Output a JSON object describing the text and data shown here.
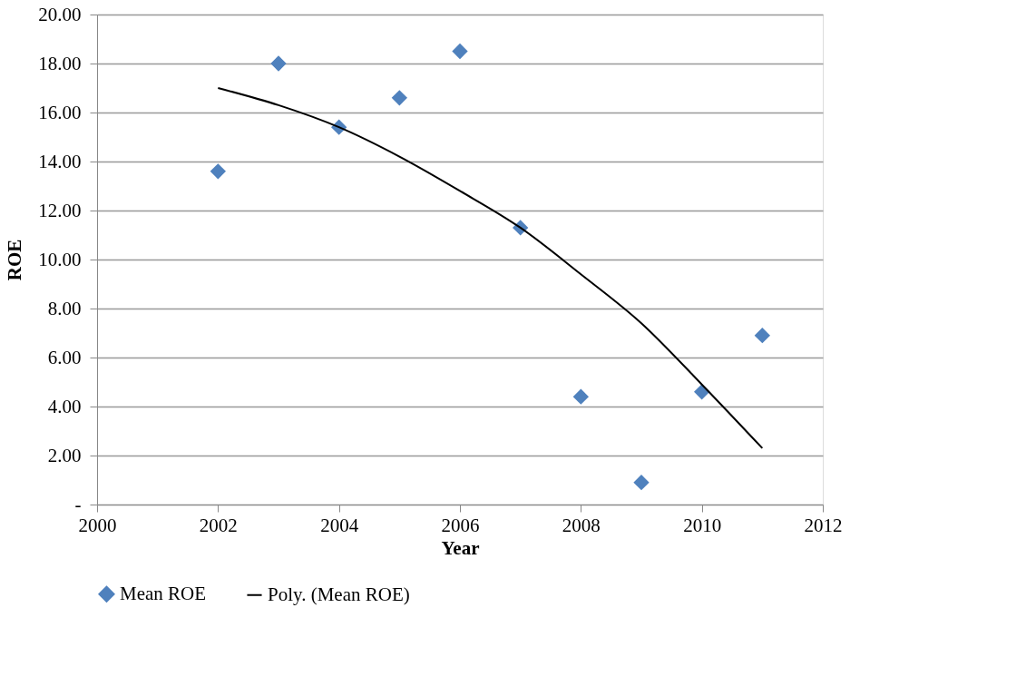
{
  "chart_data": {
    "type": "scatter",
    "xlabel": "Year",
    "ylabel": "ROE",
    "series": [
      {
        "name": "Mean ROE",
        "color": "#4f81bd",
        "marker": "diamond",
        "x": [
          2002,
          2003,
          2004,
          2005,
          2006,
          2007,
          2008,
          2009,
          2010,
          2011
        ],
        "values": [
          13.6,
          18.0,
          15.4,
          16.6,
          18.5,
          11.3,
          4.4,
          0.9,
          4.6,
          6.9
        ]
      },
      {
        "name": "Poly. (Mean ROE)",
        "type": "line",
        "color": "#000000",
        "line_style": "solid",
        "marker": "none",
        "x": [
          2002,
          2003,
          2004,
          2005,
          2006,
          2007,
          2008,
          2009,
          2010,
          2011
        ],
        "values": [
          17.0,
          16.3,
          15.4,
          14.2,
          12.8,
          11.3,
          9.4,
          7.4,
          4.9,
          2.3
        ]
      }
    ],
    "xlim": [
      2000,
      2012
    ],
    "xticks": [
      2000,
      2002,
      2004,
      2006,
      2008,
      2010,
      2012
    ],
    "ylim": [
      0,
      20
    ],
    "yticks": [
      {
        "value": 0,
        "label": "-"
      },
      {
        "value": 2,
        "label": "2.00"
      },
      {
        "value": 4,
        "label": "4.00"
      },
      {
        "value": 6,
        "label": "6.00"
      },
      {
        "value": 8,
        "label": "8.00"
      },
      {
        "value": 10,
        "label": "10.00"
      },
      {
        "value": 12,
        "label": "12.00"
      },
      {
        "value": 14,
        "label": "14.00"
      },
      {
        "value": 16,
        "label": "16.00"
      },
      {
        "value": 18,
        "label": "18.00"
      },
      {
        "value": 20,
        "label": "20.00"
      }
    ],
    "grid": "y",
    "legend": "bottom"
  }
}
